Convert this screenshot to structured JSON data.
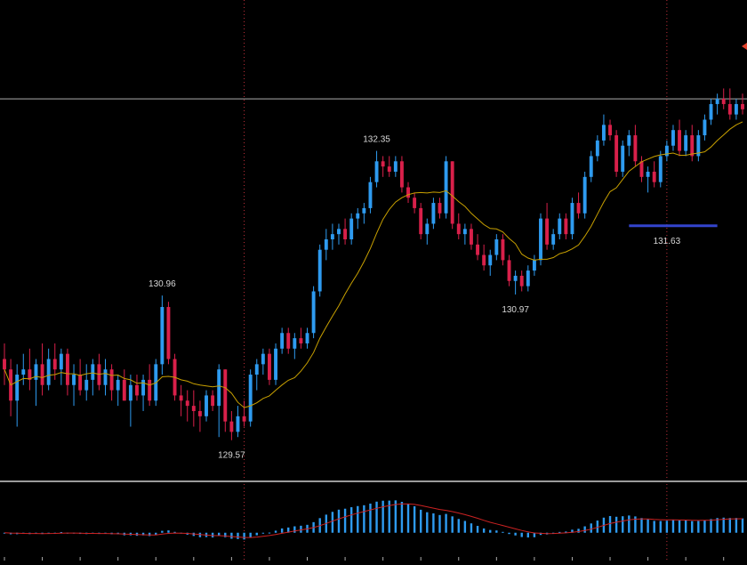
{
  "chart_data": {
    "type": "candlestick",
    "price_panel": {
      "ylim": [
        129.2,
        133.8
      ],
      "horizontal_level": 132.85,
      "moving_average": true,
      "candles": [
        [
          130.35,
          130.5,
          130.1,
          130.25
        ],
        [
          130.25,
          130.35,
          129.8,
          129.95
        ],
        [
          129.95,
          130.3,
          129.7,
          130.2
        ],
        [
          130.2,
          130.4,
          130.1,
          130.25
        ],
        [
          130.25,
          130.45,
          130.05,
          130.15
        ],
        [
          130.15,
          130.35,
          129.9,
          130.3
        ],
        [
          130.3,
          130.5,
          130.0,
          130.1
        ],
        [
          130.1,
          130.45,
          130.05,
          130.35
        ],
        [
          130.35,
          130.5,
          130.15,
          130.25
        ],
        [
          130.25,
          130.45,
          130.1,
          130.4
        ],
        [
          130.4,
          130.45,
          130.0,
          130.1
        ],
        [
          130.1,
          130.3,
          129.9,
          130.2
        ],
        [
          130.2,
          130.35,
          130.0,
          130.05
        ],
        [
          130.05,
          130.3,
          129.95,
          130.15
        ],
        [
          130.15,
          130.35,
          130.0,
          130.3
        ],
        [
          130.3,
          130.4,
          130.05,
          130.1
        ],
        [
          130.1,
          130.35,
          130.0,
          130.25
        ],
        [
          130.25,
          130.3,
          129.95,
          130.05
        ],
        [
          130.05,
          130.2,
          129.9,
          130.15
        ],
        [
          130.15,
          130.25,
          129.95,
          129.95
        ],
        [
          129.95,
          130.2,
          129.7,
          130.1
        ],
        [
          130.1,
          130.2,
          129.95,
          130.0
        ],
        [
          130.0,
          130.2,
          129.85,
          130.15
        ],
        [
          130.15,
          130.3,
          129.9,
          129.95
        ],
        [
          129.95,
          130.35,
          129.9,
          130.3
        ],
        [
          130.3,
          130.96,
          130.2,
          130.85
        ],
        [
          130.85,
          130.9,
          130.3,
          130.35
        ],
        [
          130.35,
          130.4,
          129.95,
          130.0
        ],
        [
          130.0,
          130.1,
          129.8,
          129.95
        ],
        [
          129.95,
          130.05,
          129.75,
          129.9
        ],
        [
          129.9,
          130.05,
          129.7,
          129.85
        ],
        [
          129.85,
          129.95,
          129.65,
          129.8
        ],
        [
          129.8,
          130.05,
          129.75,
          130.0
        ],
        [
          130.0,
          130.05,
          129.85,
          129.9
        ],
        [
          129.9,
          130.3,
          129.6,
          130.25
        ],
        [
          130.25,
          130.25,
          129.65,
          129.75
        ],
        [
          129.75,
          129.85,
          129.57,
          129.65
        ],
        [
          129.65,
          129.9,
          129.6,
          129.8
        ],
        [
          129.8,
          129.95,
          129.7,
          129.75
        ],
        [
          129.75,
          130.25,
          129.7,
          130.2
        ],
        [
          130.2,
          130.35,
          130.05,
          130.3
        ],
        [
          130.3,
          130.45,
          130.2,
          130.4
        ],
        [
          130.4,
          130.45,
          130.1,
          130.15
        ],
        [
          130.15,
          130.5,
          130.1,
          130.45
        ],
        [
          130.45,
          130.65,
          130.4,
          130.6
        ],
        [
          130.6,
          130.65,
          130.4,
          130.45
        ],
        [
          130.45,
          130.6,
          130.35,
          130.55
        ],
        [
          130.55,
          130.65,
          130.45,
          130.5
        ],
        [
          130.5,
          130.65,
          130.45,
          130.6
        ],
        [
          130.6,
          131.05,
          130.55,
          131.0
        ],
        [
          131.0,
          131.45,
          130.95,
          131.4
        ],
        [
          131.4,
          131.6,
          131.3,
          131.5
        ],
        [
          131.5,
          131.65,
          131.4,
          131.55
        ],
        [
          131.55,
          131.65,
          131.45,
          131.6
        ],
        [
          131.6,
          131.7,
          131.45,
          131.5
        ],
        [
          131.5,
          131.75,
          131.45,
          131.7
        ],
        [
          131.7,
          131.8,
          131.6,
          131.75
        ],
        [
          131.75,
          131.85,
          131.65,
          131.8
        ],
        [
          131.8,
          132.1,
          131.75,
          132.05
        ],
        [
          132.05,
          132.35,
          132.0,
          132.25
        ],
        [
          132.25,
          132.3,
          132.1,
          132.2
        ],
        [
          132.2,
          132.3,
          132.1,
          132.15
        ],
        [
          132.15,
          132.3,
          132.1,
          132.25
        ],
        [
          132.25,
          132.3,
          131.95,
          132.0
        ],
        [
          132.0,
          132.05,
          131.85,
          131.9
        ],
        [
          131.9,
          131.95,
          131.75,
          131.8
        ],
        [
          131.8,
          131.85,
          131.5,
          131.55
        ],
        [
          131.55,
          131.7,
          131.45,
          131.65
        ],
        [
          131.65,
          131.9,
          131.6,
          131.85
        ],
        [
          131.85,
          131.9,
          131.7,
          131.75
        ],
        [
          131.75,
          132.3,
          131.7,
          132.25
        ],
        [
          132.25,
          132.25,
          131.6,
          131.65
        ],
        [
          131.65,
          131.75,
          131.5,
          131.55
        ],
        [
          131.55,
          131.65,
          131.45,
          131.6
        ],
        [
          131.6,
          131.65,
          131.4,
          131.45
        ],
        [
          131.45,
          131.55,
          131.3,
          131.35
        ],
        [
          131.35,
          131.45,
          131.2,
          131.25
        ],
        [
          131.25,
          131.4,
          131.15,
          131.35
        ],
        [
          131.35,
          131.55,
          131.3,
          131.5
        ],
        [
          131.5,
          131.55,
          131.25,
          131.3
        ],
        [
          131.3,
          131.35,
          131.05,
          131.1
        ],
        [
          131.1,
          131.2,
          130.97,
          131.15
        ],
        [
          131.15,
          131.2,
          131.0,
          131.05
        ],
        [
          131.05,
          131.25,
          131.0,
          131.2
        ],
        [
          131.2,
          131.35,
          131.15,
          131.3
        ],
        [
          131.3,
          131.75,
          131.25,
          131.7
        ],
        [
          131.7,
          131.85,
          131.4,
          131.45
        ],
        [
          131.45,
          131.6,
          131.4,
          131.55
        ],
        [
          131.55,
          131.75,
          131.5,
          131.7
        ],
        [
          131.7,
          131.75,
          131.5,
          131.55
        ],
        [
          131.55,
          131.9,
          131.5,
          131.85
        ],
        [
          131.85,
          131.95,
          131.7,
          131.75
        ],
        [
          131.75,
          132.15,
          131.7,
          132.1
        ],
        [
          132.1,
          132.35,
          132.05,
          132.3
        ],
        [
          132.3,
          132.5,
          132.25,
          132.45
        ],
        [
          132.45,
          132.7,
          132.4,
          132.6
        ],
        [
          132.6,
          132.65,
          132.45,
          132.5
        ],
        [
          132.5,
          132.55,
          132.1,
          132.15
        ],
        [
          132.15,
          132.45,
          132.1,
          132.4
        ],
        [
          132.4,
          132.55,
          132.3,
          132.5
        ],
        [
          132.5,
          132.6,
          132.2,
          132.25
        ],
        [
          132.25,
          132.3,
          132.05,
          132.1
        ],
        [
          132.1,
          132.2,
          131.95,
          132.15
        ],
        [
          132.15,
          132.25,
          132.0,
          132.05
        ],
        [
          132.05,
          132.35,
          132.0,
          132.3
        ],
        [
          132.3,
          132.45,
          132.25,
          132.4
        ],
        [
          132.4,
          132.6,
          132.35,
          132.55
        ],
        [
          132.55,
          132.65,
          132.3,
          132.35
        ],
        [
          132.35,
          132.55,
          132.3,
          132.5
        ],
        [
          132.5,
          132.6,
          132.25,
          132.3
        ],
        [
          132.3,
          132.55,
          132.25,
          132.5
        ],
        [
          132.5,
          132.7,
          132.45,
          132.65
        ],
        [
          132.65,
          132.85,
          132.6,
          132.8
        ],
        [
          132.8,
          132.9,
          132.7,
          132.85
        ],
        [
          132.85,
          132.95,
          132.75,
          132.8
        ],
        [
          132.8,
          132.95,
          132.65,
          132.7
        ],
        [
          132.7,
          132.85,
          132.65,
          132.8
        ],
        [
          132.8,
          132.9,
          132.7,
          132.75
        ]
      ],
      "annotations": [
        {
          "text": "130.96",
          "candle": 25,
          "price": 130.96,
          "position": "above"
        },
        {
          "text": "129.57",
          "candle": 36,
          "price": 129.57,
          "position": "below"
        },
        {
          "text": "132.35",
          "candle": 59,
          "price": 132.35,
          "position": "above"
        },
        {
          "text": "130.97",
          "candle": 81,
          "price": 130.97,
          "position": "below"
        },
        {
          "text": "131.63",
          "candle": 105,
          "price": 131.63,
          "position": "below"
        }
      ],
      "support_line": {
        "price": 131.63,
        "from_candle": 99,
        "to_candle": 113,
        "color": "#3344cc"
      },
      "period_separators": [
        38,
        105
      ]
    },
    "oscillator_panel": {
      "type": "histogram",
      "ylim": [
        -0.35,
        0.8
      ]
    }
  },
  "colors": {
    "background": "#000000",
    "up_candle": "#2e9bf0",
    "down_candle": "#d9204a",
    "moving_average": "#c8a000",
    "histogram": "#2e9bf0",
    "signal_line": "#cc2222",
    "separator": "#c0303a",
    "level_line": "#8a8a8a",
    "panel_divider": "#9a9a9a",
    "label_text": "#d8d8d8",
    "arrow": "#e0402a"
  }
}
